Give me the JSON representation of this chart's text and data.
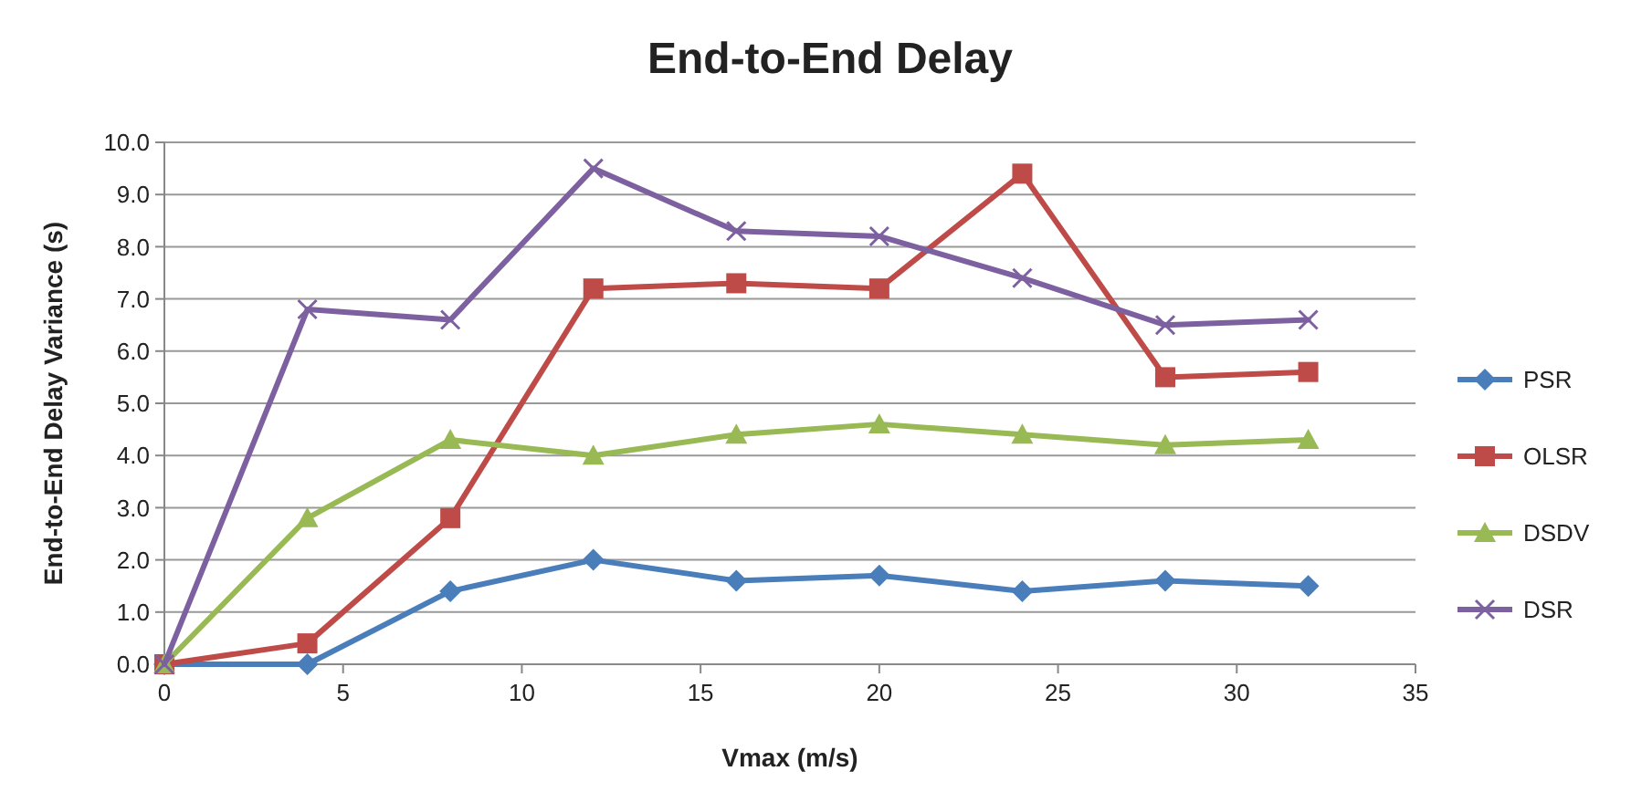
{
  "chart_data": {
    "type": "line",
    "title": "End-to-End Delay",
    "xlabel": "Vmax (m/s)",
    "ylabel": "End-to-End Delay Variance (s)",
    "x": [
      0,
      4,
      8,
      12,
      16,
      20,
      24,
      28,
      32
    ],
    "xlim": [
      0,
      35
    ],
    "xticks": [
      0,
      5,
      10,
      15,
      20,
      25,
      30,
      35
    ],
    "ylim": [
      0,
      10
    ],
    "yticks": [
      {
        "value": 0,
        "label": "0.0"
      },
      {
        "value": 1,
        "label": "1.0"
      },
      {
        "value": 2,
        "label": "2.0"
      },
      {
        "value": 3,
        "label": "3.0"
      },
      {
        "value": 4,
        "label": "4.0"
      },
      {
        "value": 5,
        "label": "5.0"
      },
      {
        "value": 6,
        "label": "6.0"
      },
      {
        "value": 7,
        "label": "7.0"
      },
      {
        "value": 8,
        "label": "8.0"
      },
      {
        "value": 9,
        "label": "9.0"
      },
      {
        "value": 10,
        "label": "10.0"
      }
    ],
    "grid": "y",
    "legend": "right",
    "line_style": "solid",
    "series": [
      {
        "name": "PSR",
        "color": "#4a7ebb",
        "marker": "diamond",
        "values": [
          0,
          0,
          1.4,
          2.0,
          1.6,
          1.7,
          1.4,
          1.6,
          1.5
        ]
      },
      {
        "name": "OLSR",
        "color": "#be4b48",
        "marker": "square",
        "values": [
          0,
          0.4,
          2.8,
          7.2,
          7.3,
          7.2,
          9.4,
          5.5,
          5.6
        ]
      },
      {
        "name": "DSDV",
        "color": "#98b954",
        "marker": "triangle",
        "values": [
          0,
          2.8,
          4.3,
          4.0,
          4.4,
          4.6,
          4.4,
          4.2,
          4.3
        ]
      },
      {
        "name": "DSR",
        "color": "#7d60a0",
        "marker": "cross",
        "values": [
          0,
          6.8,
          6.6,
          9.5,
          8.3,
          8.2,
          7.4,
          6.5,
          6.6
        ]
      }
    ]
  }
}
